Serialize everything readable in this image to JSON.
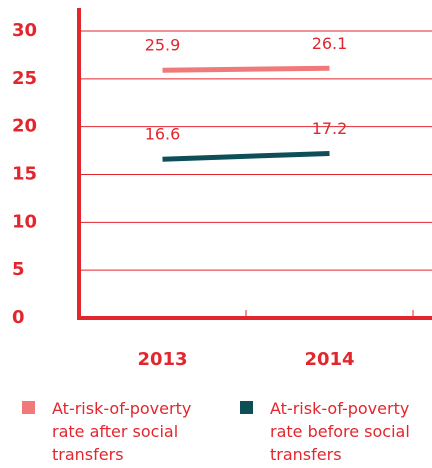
{
  "chart_data": {
    "type": "line",
    "categories": [
      "2013",
      "2014"
    ],
    "series": [
      {
        "name": "At-risk-of-poverty rate after social transfers",
        "color": "#f07a7a",
        "values": [
          25.9,
          26.1
        ]
      },
      {
        "name": "At-risk-of-poverty rate before social transfers",
        "color": "#0e4f57",
        "values": [
          16.6,
          17.2
        ]
      }
    ],
    "ylim": [
      0,
      30
    ],
    "yticks": [
      0,
      5,
      10,
      15,
      20,
      25,
      30
    ],
    "grid": true,
    "legend": "bottom"
  }
}
